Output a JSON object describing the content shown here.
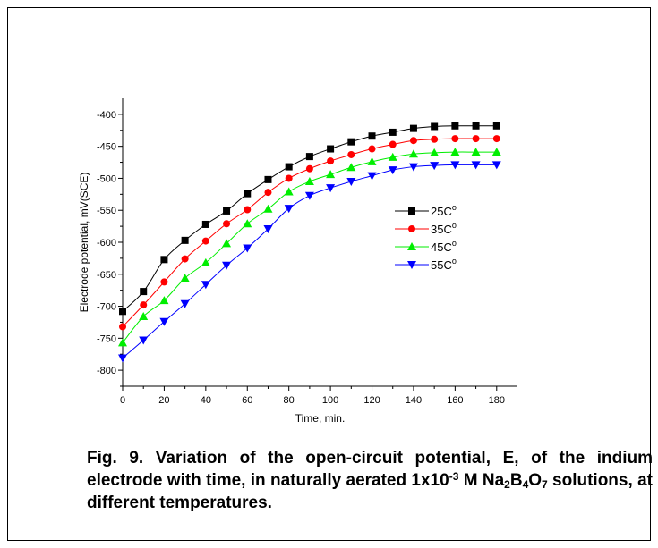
{
  "chart_data": {
    "type": "line",
    "xlabel": "Time, min.",
    "ylabel": "Electrode potential, mV(SCE)",
    "xlim": [
      0,
      190
    ],
    "ylim": [
      -825,
      -375
    ],
    "xticks": [
      0,
      20,
      40,
      60,
      80,
      100,
      120,
      140,
      160,
      180
    ],
    "yticks": [
      -400,
      -450,
      -500,
      -550,
      -600,
      -650,
      -700,
      -750,
      -800
    ],
    "x": [
      0,
      10,
      20,
      30,
      40,
      50,
      60,
      70,
      80,
      90,
      100,
      110,
      120,
      130,
      140,
      150,
      160,
      170,
      180
    ],
    "legend_position": "center-right",
    "series": [
      {
        "name": "25C",
        "unit_sup": "o",
        "color": "#000000",
        "marker": "square",
        "values": [
          -708,
          -677,
          -627,
          -597,
          -572,
          -551,
          -524,
          -502,
          -482,
          -466,
          -454,
          -443,
          -434,
          -428,
          -422,
          -419,
          -418,
          -418,
          -418
        ]
      },
      {
        "name": "35C",
        "unit_sup": "o",
        "color": "#ff0000",
        "marker": "circle",
        "values": [
          -732,
          -698,
          -662,
          -626,
          -598,
          -571,
          -549,
          -522,
          -500,
          -485,
          -473,
          -463,
          -454,
          -447,
          -441,
          -439,
          -438,
          -438,
          -438
        ]
      },
      {
        "name": "45C",
        "unit_sup": "o",
        "color": "#00ee00",
        "marker": "triangle-up",
        "values": [
          -757,
          -716,
          -691,
          -656,
          -632,
          -602,
          -571,
          -548,
          -521,
          -505,
          -494,
          -483,
          -474,
          -467,
          -462,
          -460,
          -459,
          -459,
          -459
        ]
      },
      {
        "name": "55C",
        "unit_sup": "o",
        "color": "#0000ff",
        "marker": "triangle-down",
        "values": [
          -781,
          -753,
          -724,
          -696,
          -666,
          -636,
          -609,
          -579,
          -547,
          -527,
          -515,
          -505,
          -496,
          -487,
          -482,
          -480,
          -479,
          -479,
          -479
        ]
      }
    ]
  },
  "caption": {
    "part1": "Fig. 9. Variation of the open-circuit potential, E, of the indium electrode with time, in naturally aerated  1x10",
    "exp": "-3",
    "part2": " M Na",
    "sub1": "2",
    "part3": "B",
    "sub2": "4",
    "part4": "O",
    "sub3": "7",
    "part5": " solutions, at different temperatures."
  }
}
